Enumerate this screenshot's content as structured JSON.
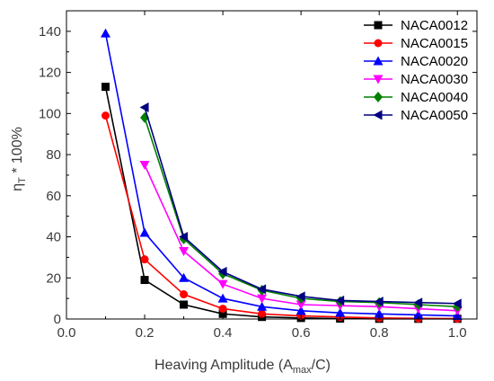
{
  "chart_data": {
    "type": "line",
    "xlabel": {
      "pre": "Heaving Amplitude (A",
      "sub": "max",
      "post": "/C)"
    },
    "ylabel": {
      "pre": "η",
      "sub": "T",
      "post": " * 100%"
    },
    "xlim": [
      0.0,
      1.05
    ],
    "ylim": [
      0,
      150
    ],
    "xticks": [
      {
        "value": 0.0,
        "label": "0.0"
      },
      {
        "value": 0.2,
        "label": "0.2"
      },
      {
        "value": 0.4,
        "label": "0.4"
      },
      {
        "value": 0.6,
        "label": "0.6"
      },
      {
        "value": 0.8,
        "label": "0.8"
      },
      {
        "value": 1.0,
        "label": "1.0"
      }
    ],
    "yticks": [
      {
        "value": 0,
        "label": "0"
      },
      {
        "value": 20,
        "label": "20"
      },
      {
        "value": 40,
        "label": "40"
      },
      {
        "value": 60,
        "label": "60"
      },
      {
        "value": 80,
        "label": "80"
      },
      {
        "value": 100,
        "label": "100"
      },
      {
        "value": 120,
        "label": "120"
      },
      {
        "value": 140,
        "label": "140"
      }
    ],
    "grid": false,
    "legend_position": "top-right",
    "series": [
      {
        "name": "NACA0012",
        "color": "#000000",
        "marker": "square",
        "x": [
          0.1,
          0.2,
          0.3,
          0.4,
          0.5,
          0.6,
          0.7,
          0.8,
          0.9,
          1.0
        ],
        "y": [
          113,
          19,
          7,
          2.5,
          1,
          0.5,
          0.2,
          0.1,
          0.1,
          0.1
        ]
      },
      {
        "name": "NACA0015",
        "color": "#ff0000",
        "marker": "circle",
        "x": [
          0.1,
          0.2,
          0.3,
          0.4,
          0.5,
          0.6,
          0.7,
          0.8,
          0.9,
          1.0
        ],
        "y": [
          99,
          29,
          12,
          5,
          2.5,
          1.5,
          1,
          0.5,
          0.3,
          0.2
        ]
      },
      {
        "name": "NACA0020",
        "color": "#0000ff",
        "marker": "triangle-up",
        "x": [
          0.1,
          0.2,
          0.3,
          0.4,
          0.5,
          0.6,
          0.7,
          0.8,
          0.9,
          1.0
        ],
        "y": [
          139,
          42,
          20,
          10,
          6,
          4,
          3,
          2.5,
          2,
          1.5
        ]
      },
      {
        "name": "NACA0030",
        "color": "#ff00ff",
        "marker": "triangle-down",
        "x": [
          0.2,
          0.3,
          0.4,
          0.5,
          0.6,
          0.7,
          0.8,
          0.9,
          1.0
        ],
        "y": [
          75,
          33,
          17,
          10,
          7,
          6.5,
          6,
          5,
          4
        ]
      },
      {
        "name": "NACA0040",
        "color": "#008000",
        "marker": "diamond",
        "x": [
          0.2,
          0.3,
          0.4,
          0.5,
          0.6,
          0.7,
          0.8,
          0.9,
          1.0
        ],
        "y": [
          98,
          39,
          22,
          14,
          10,
          8.5,
          8,
          7,
          6
        ]
      },
      {
        "name": "NACA0050",
        "color": "#000080",
        "marker": "triangle-left",
        "x": [
          0.2,
          0.3,
          0.4,
          0.5,
          0.6,
          0.7,
          0.8,
          0.9,
          1.0
        ],
        "y": [
          103,
          40,
          23,
          14.5,
          11,
          9,
          8.5,
          8,
          7.5
        ]
      }
    ]
  }
}
